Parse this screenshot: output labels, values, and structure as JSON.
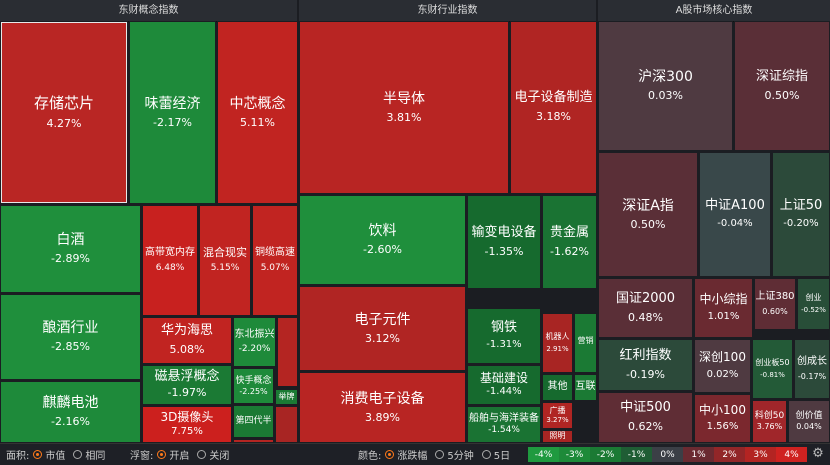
{
  "sections": [
    {
      "key": "concept",
      "title": "东财概念指数"
    },
    {
      "key": "industry",
      "title": "东财行业指数"
    },
    {
      "key": "core",
      "title": "A股市场核心指数"
    }
  ],
  "tiles": [
    {
      "name": "存储芯片",
      "pct": "4.27%",
      "color": "#b92624",
      "selected": true
    },
    {
      "name": "味蕾经济",
      "pct": "-2.17%",
      "color": "#1e8a3a"
    },
    {
      "name": "中芯概念",
      "pct": "5.11%",
      "color": "#c12421"
    },
    {
      "name": "白酒",
      "pct": "-2.89%",
      "color": "#1f8f3c"
    },
    {
      "name": "高带宽内存",
      "pct": "6.48%",
      "color": "#c8211f"
    },
    {
      "name": "混合现实",
      "pct": "5.15%",
      "color": "#c12421"
    },
    {
      "name": "铜缆高速",
      "pct": "5.07%",
      "color": "#c12421"
    },
    {
      "name": "酿酒行业",
      "pct": "-2.85%",
      "color": "#1f8f3c"
    },
    {
      "name": "华为海思",
      "pct": "5.08%",
      "color": "#c12421"
    },
    {
      "name": "东北振兴",
      "pct": "-2.20%",
      "color": "#1e8a3a"
    },
    {
      "name": "磁悬浮概念",
      "pct": "-1.97%",
      "color": "#1b7a34"
    },
    {
      "name": "麒麟电池",
      "pct": "-2.16%",
      "color": "#1e8a3a"
    },
    {
      "name": "快手概念",
      "pct": "-2.25%",
      "color": "#1e8a3a"
    },
    {
      "name": "举牌",
      "pct": "",
      "color": "#1b7a34"
    },
    {
      "name": "3D摄像头",
      "pct": "7.75%",
      "color": "#cc201e"
    },
    {
      "name": "第四代半",
      "pct": "",
      "color": "#1b7a34"
    },
    {
      "name": "",
      "pct": "",
      "color": "#b42522"
    },
    {
      "name": "",
      "pct": "",
      "color": "#b42522"
    },
    {
      "name": "",
      "pct": "",
      "color": "#a82523"
    },
    {
      "name": "半导体",
      "pct": "3.81%",
      "color": "#b82523"
    },
    {
      "name": "电子设备制造",
      "pct": "3.18%",
      "color": "#b02523"
    },
    {
      "name": "饮料",
      "pct": "-2.60%",
      "color": "#1f8f3c"
    },
    {
      "name": "输变电设备",
      "pct": "-1.35%",
      "color": "#166a2e"
    },
    {
      "name": "贵金属",
      "pct": "-1.62%",
      "color": "#1a7333"
    },
    {
      "name": "电子元件",
      "pct": "3.12%",
      "color": "#b02523"
    },
    {
      "name": "钢铁",
      "pct": "-1.31%",
      "color": "#166a2e"
    },
    {
      "name": "机器人",
      "pct": "2.91%",
      "color": "#a82523"
    },
    {
      "name": "营销",
      "pct": "",
      "color": "#1b7a34"
    },
    {
      "name": "基础建设",
      "pct": "-1.44%",
      "color": "#166a2e"
    },
    {
      "name": "其他",
      "pct": "",
      "color": "#166a2e"
    },
    {
      "name": "互联",
      "pct": "",
      "color": "#1b7a34"
    },
    {
      "name": "消费电子设备",
      "pct": "3.89%",
      "color": "#b82523"
    },
    {
      "name": "船舶与海洋装备",
      "pct": "-1.54%",
      "color": "#1a7333"
    },
    {
      "name": "广播",
      "pct": "3.27%",
      "color": "#b02523"
    },
    {
      "name": "照明",
      "pct": "",
      "color": "#a82523"
    },
    {
      "name": "沪深300",
      "pct": "0.03%",
      "color": "#4f3a41"
    },
    {
      "name": "深证综指",
      "pct": "0.50%",
      "color": "#5a2f37"
    },
    {
      "name": "深证A指",
      "pct": "0.50%",
      "color": "#5a2f37"
    },
    {
      "name": "中证A100",
      "pct": "-0.04%",
      "color": "#39484a"
    },
    {
      "name": "上证50",
      "pct": "-0.20%",
      "color": "#2c4a3a"
    },
    {
      "name": "国证2000",
      "pct": "0.48%",
      "color": "#5a2f37"
    },
    {
      "name": "中小综指",
      "pct": "1.01%",
      "color": "#6a2a31"
    },
    {
      "name": "上证380",
      "pct": "0.60%",
      "color": "#5f2d35"
    },
    {
      "name": "创业",
      "pct": "-0.52%",
      "color": "#284e38"
    },
    {
      "name": "红利指数",
      "pct": "-0.19%",
      "color": "#2c4a3a"
    },
    {
      "name": "深创100",
      "pct": "0.02%",
      "color": "#4f3a41"
    },
    {
      "name": "创业板50",
      "pct": "-0.81%",
      "color": "#235a37"
    },
    {
      "name": "创成长",
      "pct": "-0.17%",
      "color": "#2c4a3a"
    },
    {
      "name": "中证500",
      "pct": "0.62%",
      "color": "#5f2d35"
    },
    {
      "name": "中小100",
      "pct": "1.56%",
      "color": "#7b282e"
    },
    {
      "name": "科创50",
      "pct": "3.76%",
      "color": "#a0262a"
    },
    {
      "name": "创价值",
      "pct": "0.04%",
      "color": "#4f3a41"
    }
  ],
  "bottombar": {
    "area_label": "面积:",
    "area_options": [
      "市值",
      "相同"
    ],
    "area_selected": 0,
    "float_label": "浮窗:",
    "float_options": [
      "开启",
      "关闭"
    ],
    "float_selected": 0,
    "color_label": "颜色:",
    "color_options": [
      "涨跌幅",
      "5分钟",
      "5日"
    ],
    "color_selected": 0,
    "legend": [
      {
        "label": "-4%",
        "color": "#1f9a3f"
      },
      {
        "label": "-3%",
        "color": "#1d8a39"
      },
      {
        "label": "-2%",
        "color": "#1b7a34"
      },
      {
        "label": "-1%",
        "color": "#1f5d34"
      },
      {
        "label": "0%",
        "color": "#3b3f46"
      },
      {
        "label": "1%",
        "color": "#6a2a31"
      },
      {
        "label": "2%",
        "color": "#922628"
      },
      {
        "label": "3%",
        "color": "#b32422"
      },
      {
        "label": "4%",
        "color": "#cf2220"
      }
    ],
    "settings_icon": "gear-icon"
  }
}
